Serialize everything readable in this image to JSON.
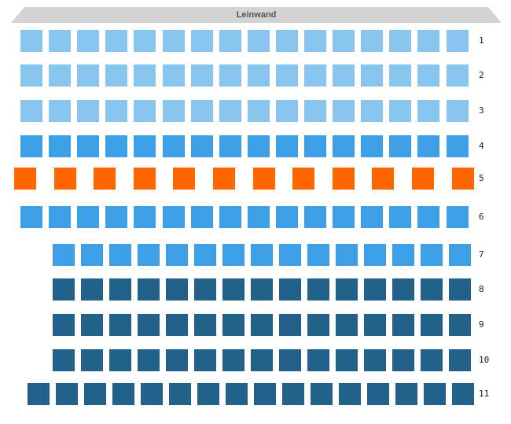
{
  "screen": {
    "label": "Leinwand"
  },
  "colors": {
    "screen_fill": "#d3d3d3",
    "light_blue": "#87c5ee",
    "medium_blue": "#3da0e6",
    "orange": "#ff6600",
    "dark_blue": "#226189"
  },
  "rows": [
    {
      "label": "1",
      "count": 16,
      "color": "light_blue"
    },
    {
      "label": "2",
      "count": 16,
      "color": "light_blue"
    },
    {
      "label": "3",
      "count": 16,
      "color": "light_blue"
    },
    {
      "label": "4",
      "count": 16,
      "color": "medium_blue"
    },
    {
      "label": "5",
      "count": 12,
      "color": "orange"
    },
    {
      "label": "6",
      "count": 16,
      "color": "medium_blue"
    },
    {
      "label": "7",
      "count": 15,
      "color": "medium_blue"
    },
    {
      "label": "8",
      "count": 15,
      "color": "dark_blue"
    },
    {
      "label": "9",
      "count": 15,
      "color": "dark_blue"
    },
    {
      "label": "10",
      "count": 15,
      "color": "dark_blue"
    },
    {
      "label": "11",
      "count": 16,
      "color": "dark_blue"
    }
  ]
}
